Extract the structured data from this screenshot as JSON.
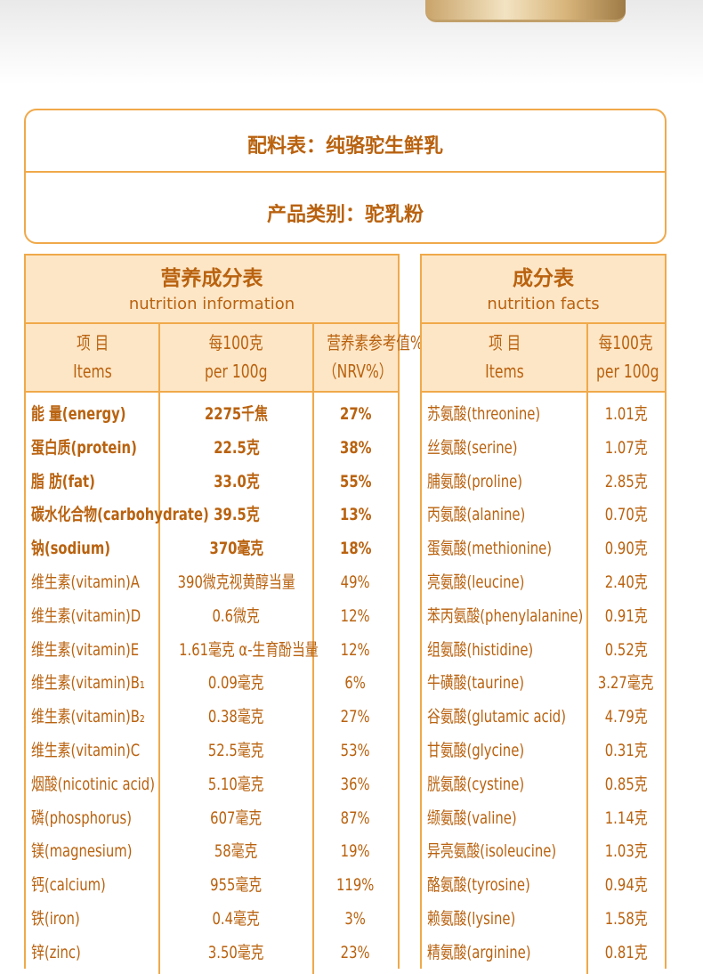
{
  "ingredients": "配料表：纯骆驼生鲜乳",
  "product_category": "产品类别：驼乳粉",
  "nutrition_table": {
    "title": "营养成分表",
    "subtitle": "nutrition information",
    "headers": [
      [
        "项 目",
        "Items"
      ],
      [
        "每100克",
        "per 100g"
      ],
      [
        "营养素参考值%",
        "（NRV%）"
      ]
    ],
    "rows": [
      [
        "能 量(energy)",
        "2275千焦",
        "27%"
      ],
      [
        "蛋白质(protein)",
        "22.5克",
        "38%"
      ],
      [
        "脂 肪(fat)",
        "33.0克",
        "55%"
      ],
      [
        "碳水化合物(carbohydrate)",
        "39.5克",
        "13%"
      ],
      [
        "钠(sodium)",
        "370毫克",
        "18%"
      ],
      [
        "维生素(vitamin)A",
        "390微克视黄醇当量",
        "49%"
      ],
      [
        "维生素(vitamin)D",
        "0.6微克",
        "12%"
      ],
      [
        "维生素(vitamin)E",
        "1.61毫克 α-生育酚当量",
        "12%"
      ],
      [
        "维生素(vitamin)B₁",
        "0.09毫克",
        "6%"
      ],
      [
        "维生素(vitamin)B₂",
        "0.38毫克",
        "27%"
      ],
      [
        "维生素(vitamin)C",
        "52.5毫克",
        "53%"
      ],
      [
        "烟酸(nicotinic acid)",
        "5.10毫克",
        "36%"
      ],
      [
        "磷(phosphorus)",
        "607毫克",
        "87%"
      ],
      [
        "镁(magnesium)",
        "58毫克",
        "19%"
      ],
      [
        "钙(calcium)",
        "955毫克",
        "119%"
      ],
      [
        "铁(iron)",
        "0.4毫克",
        "3%"
      ],
      [
        "锌(zinc)",
        "3.50毫克",
        "23%"
      ]
    ]
  },
  "facts_table": {
    "title": "成分表",
    "subtitle": "nutrition facts",
    "headers": [
      [
        "项 目",
        "Items"
      ],
      [
        "每100克",
        "per 100g"
      ]
    ],
    "rows": [
      [
        "苏氨酸(threonine)",
        "1.01克"
      ],
      [
        "丝氨酸(serine)",
        "1.07克"
      ],
      [
        "脯氨酸(proline)",
        "2.85克"
      ],
      [
        "丙氨酸(alanine)",
        "0.70克"
      ],
      [
        "蛋氨酸(methionine)",
        "0.90克"
      ],
      [
        "亮氨酸(leucine)",
        "2.40克"
      ],
      [
        "苯丙氨酸(phenylalanine)",
        "0.91克"
      ],
      [
        "组氨酸(histidine)",
        "0.52克"
      ],
      [
        "牛磺酸(taurine)",
        "3.27毫克"
      ],
      [
        "谷氨酸(glutamic acid)",
        "4.79克"
      ],
      [
        "甘氨酸(glycine)",
        "0.31克"
      ],
      [
        "胱氨酸(cystine)",
        "0.85克"
      ],
      [
        "缬氨酸(valine)",
        "1.14克"
      ],
      [
        "异亮氨酸(isoleucine)",
        "1.03克"
      ],
      [
        "酪氨酸(tyrosine)",
        "0.94克"
      ],
      [
        "赖氨酸(lysine)",
        "1.58克"
      ],
      [
        "精氨酸(arginine)",
        "0.81克"
      ]
    ]
  }
}
